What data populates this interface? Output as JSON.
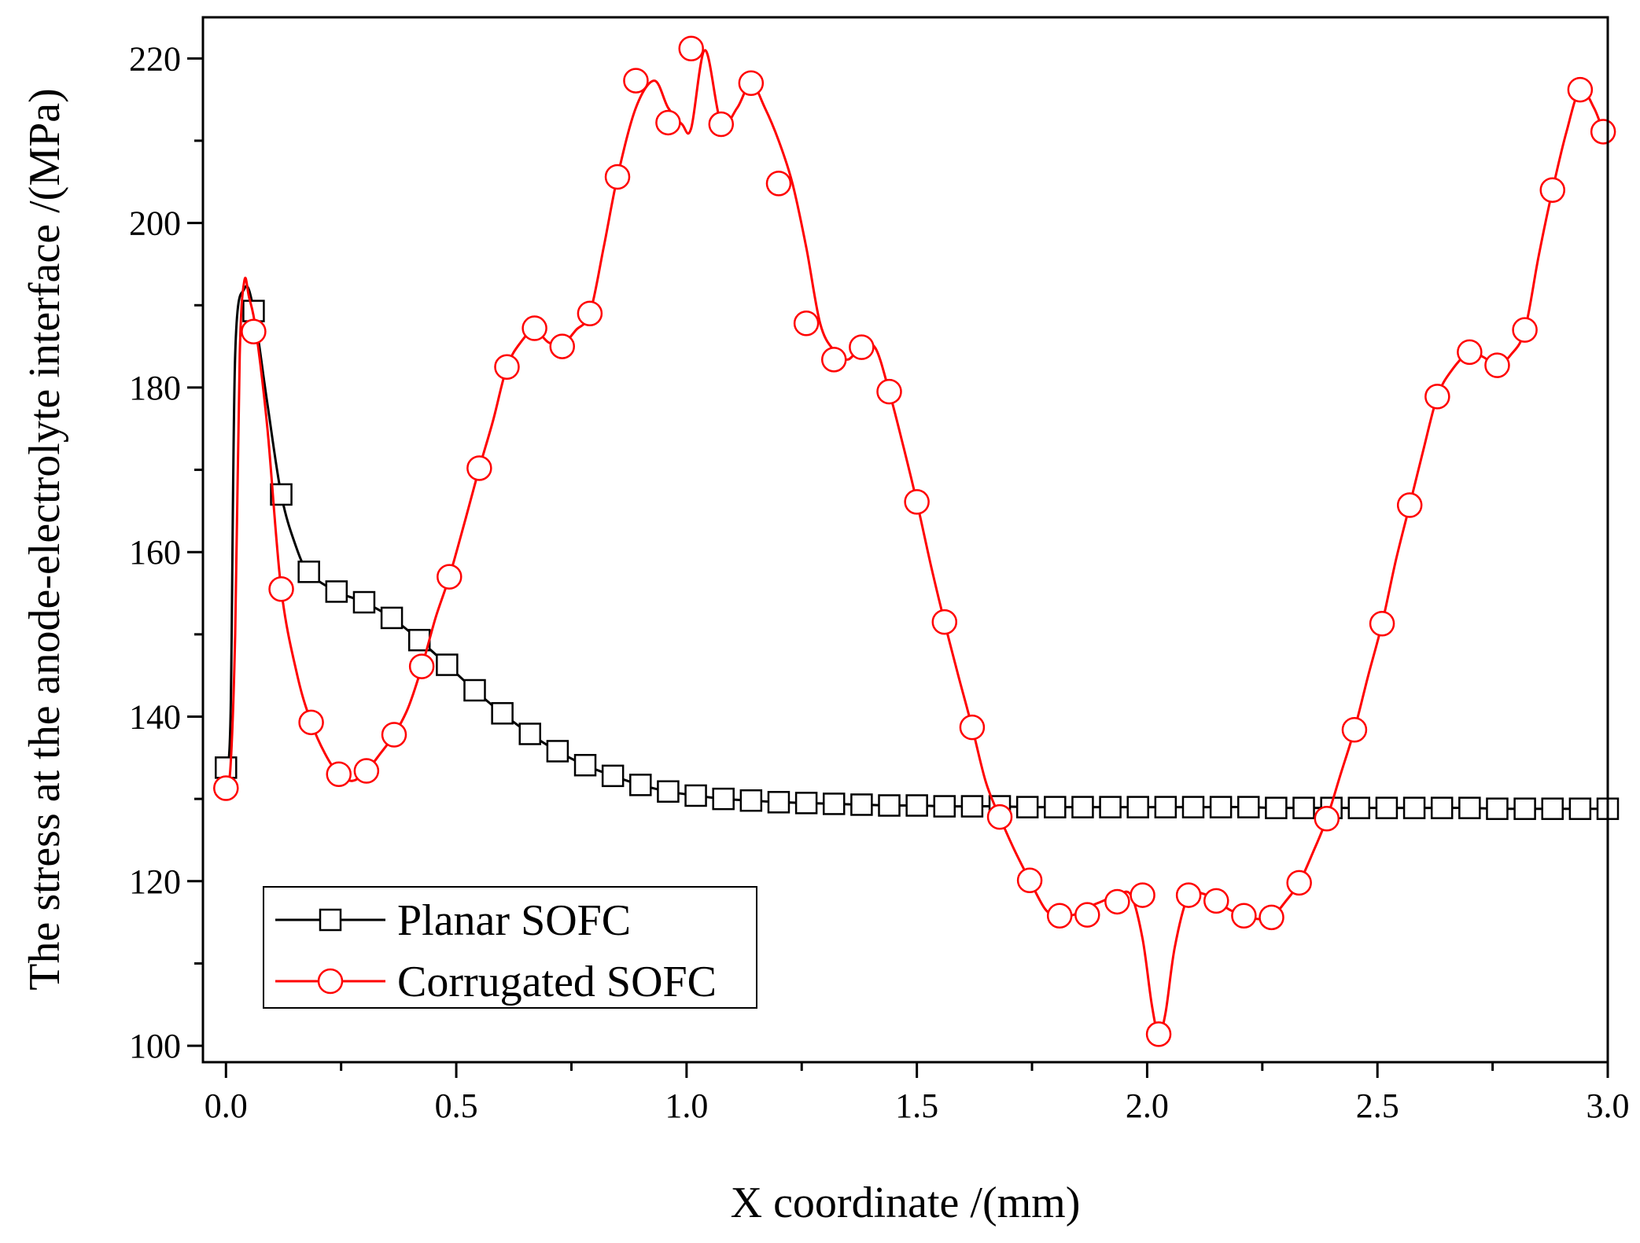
{
  "chart_data": {
    "type": "line",
    "title": "",
    "xlabel": "X coordinate /(mm)",
    "ylabel": "The stress at the anode-electrolyte interface /(MPa)",
    "xlim": [
      -0.05,
      3.0
    ],
    "ylim": [
      98,
      225
    ],
    "xticks": [
      0.0,
      0.5,
      1.0,
      1.5,
      2.0,
      2.5,
      3.0
    ],
    "xtick_labels": [
      "0.0",
      "0.5",
      "1.0",
      "1.5",
      "2.0",
      "2.5",
      "3.0"
    ],
    "yticks": [
      100,
      120,
      140,
      160,
      180,
      200,
      220
    ],
    "ytick_labels": [
      "100",
      "120",
      "140",
      "160",
      "180",
      "200",
      "220"
    ],
    "grid": false,
    "legend_position": "bottom-left",
    "series": [
      {
        "name": "Planar SOFC",
        "color": "#000000",
        "marker": "square",
        "line_x": [
          0.0,
          0.01,
          0.02,
          0.04,
          0.06,
          0.09,
          0.12,
          0.15,
          0.18,
          0.24,
          0.3,
          0.36,
          0.42,
          0.48,
          0.54,
          0.6,
          0.66,
          0.72,
          0.78,
          0.84,
          0.9,
          0.96,
          1.02,
          1.08,
          1.14,
          1.2,
          1.26,
          1.32,
          1.38,
          1.44,
          1.5,
          1.56,
          1.62,
          1.68,
          1.74,
          1.8,
          1.86,
          1.92,
          1.98,
          2.04,
          2.1,
          2.16,
          2.22,
          2.28,
          2.34,
          2.4,
          2.46,
          2.52,
          2.58,
          2.64,
          2.7,
          2.76,
          2.82,
          2.88,
          2.94,
          3.0
        ],
        "line_y": [
          133.8,
          140,
          184,
          192,
          189.5,
          178,
          167,
          161,
          157.5,
          155.2,
          153.9,
          152.0,
          149.3,
          146.3,
          143.2,
          140.4,
          137.9,
          135.8,
          134.1,
          132.8,
          131.7,
          130.9,
          130.4,
          130.0,
          129.8,
          129.6,
          129.5,
          129.4,
          129.3,
          129.2,
          129.2,
          129.1,
          129.1,
          129.1,
          129.0,
          129.0,
          129.0,
          129.0,
          129.0,
          129.0,
          129.0,
          129.0,
          129.0,
          128.9,
          128.9,
          128.9,
          128.9,
          128.9,
          128.9,
          128.9,
          128.9,
          128.8,
          128.8,
          128.8,
          128.8,
          128.8
        ],
        "marker_x": [
          0.0,
          0.06,
          0.12,
          0.18,
          0.24,
          0.3,
          0.36,
          0.42,
          0.48,
          0.54,
          0.6,
          0.66,
          0.72,
          0.78,
          0.84,
          0.9,
          0.96,
          1.02,
          1.08,
          1.14,
          1.2,
          1.26,
          1.32,
          1.38,
          1.44,
          1.5,
          1.56,
          1.62,
          1.68,
          1.74,
          1.8,
          1.86,
          1.92,
          1.98,
          2.04,
          2.1,
          2.16,
          2.22,
          2.28,
          2.34,
          2.4,
          2.46,
          2.52,
          2.58,
          2.64,
          2.7,
          2.76,
          2.82,
          2.88,
          2.94,
          3.0
        ],
        "marker_y": [
          133.8,
          189.3,
          167.0,
          157.6,
          155.2,
          153.9,
          152.0,
          149.3,
          146.3,
          143.2,
          140.4,
          137.9,
          135.8,
          134.1,
          132.8,
          131.7,
          130.9,
          130.4,
          130.0,
          129.8,
          129.6,
          129.5,
          129.4,
          129.3,
          129.2,
          129.2,
          129.1,
          129.1,
          129.1,
          129.0,
          129.0,
          129.0,
          129.0,
          129.0,
          129.0,
          129.0,
          129.0,
          129.0,
          128.9,
          128.9,
          128.9,
          128.9,
          128.9,
          128.9,
          128.9,
          128.9,
          128.8,
          128.8,
          128.8,
          128.8,
          128.8
        ]
      },
      {
        "name": "Corrugated SOFC",
        "color": "#ff0000",
        "marker": "circle",
        "line_x": [
          0.0,
          0.01,
          0.02,
          0.03,
          0.04,
          0.05,
          0.065,
          0.09,
          0.12,
          0.155,
          0.185,
          0.215,
          0.245,
          0.275,
          0.305,
          0.335,
          0.365,
          0.395,
          0.425,
          0.455,
          0.485,
          0.52,
          0.55,
          0.58,
          0.61,
          0.64,
          0.67,
          0.7,
          0.73,
          0.76,
          0.79,
          0.82,
          0.85,
          0.89,
          0.93,
          0.96,
          0.99,
          1.01,
          1.04,
          1.075,
          1.11,
          1.14,
          1.17,
          1.2,
          1.23,
          1.26,
          1.29,
          1.32,
          1.35,
          1.38,
          1.41,
          1.44,
          1.47,
          1.5,
          1.53,
          1.56,
          1.59,
          1.62,
          1.65,
          1.68,
          1.71,
          1.745,
          1.78,
          1.81,
          1.84,
          1.87,
          1.9,
          1.935,
          1.965,
          1.99,
          2.01,
          2.025,
          2.04,
          2.06,
          2.09,
          2.12,
          2.15,
          2.18,
          2.21,
          2.24,
          2.27,
          2.3,
          2.33,
          2.36,
          2.39,
          2.42,
          2.45,
          2.48,
          2.51,
          2.54,
          2.57,
          2.6,
          2.63,
          2.66,
          2.7,
          2.73,
          2.76,
          2.79,
          2.82,
          2.85,
          2.88,
          2.91,
          2.94,
          2.97,
          2.99
        ],
        "line_y": [
          131.3,
          134,
          150,
          184,
          193,
          191,
          187,
          175,
          155.5,
          145,
          139.3,
          135.5,
          133.0,
          132.2,
          133.4,
          135.5,
          137.8,
          141,
          146,
          152,
          157,
          164,
          170.2,
          176,
          182.5,
          185.5,
          187,
          185.5,
          185.2,
          187,
          189,
          197,
          205.6,
          214,
          217.3,
          214,
          212,
          211.5,
          221,
          212.2,
          214,
          217,
          214,
          210,
          204.8,
          197,
          187.8,
          184.5,
          183.4,
          185,
          184.8,
          179.5,
          173,
          166.1,
          158.5,
          151.5,
          145,
          138.7,
          132,
          127.8,
          124,
          120.1,
          116.5,
          115.8,
          115.9,
          116.8,
          117.5,
          118.3,
          118.3,
          113,
          105,
          101.4,
          104,
          112,
          118.3,
          118.5,
          117.6,
          116.5,
          115.8,
          115.4,
          115.6,
          117.5,
          119.8,
          123.5,
          127.6,
          133,
          138.4,
          145,
          151.3,
          159,
          165.7,
          172.5,
          178.9,
          182,
          184.3,
          183.7,
          182.7,
          184,
          187,
          196,
          204,
          211,
          216.2,
          214,
          211.1
        ],
        "marker_x": [
          0.0,
          0.06,
          0.12,
          0.185,
          0.245,
          0.305,
          0.365,
          0.425,
          0.485,
          0.55,
          0.61,
          0.67,
          0.73,
          0.79,
          0.85,
          0.89,
          0.96,
          1.01,
          1.075,
          1.14,
          1.2,
          1.26,
          1.32,
          1.38,
          1.44,
          1.5,
          1.56,
          1.62,
          1.68,
          1.745,
          1.81,
          1.87,
          1.935,
          1.99,
          2.025,
          2.09,
          2.15,
          2.21,
          2.27,
          2.33,
          2.39,
          2.45,
          2.51,
          2.57,
          2.63,
          2.7,
          2.76,
          2.82,
          2.88,
          2.94,
          2.99
        ],
        "marker_y": [
          131.3,
          186.8,
          155.5,
          139.3,
          133.0,
          133.4,
          137.8,
          146.1,
          157.0,
          170.2,
          182.5,
          187.2,
          185.0,
          189.0,
          205.6,
          217.3,
          212.2,
          221.2,
          212.0,
          217.0,
          204.8,
          187.8,
          183.4,
          184.9,
          179.5,
          166.1,
          151.5,
          138.7,
          127.8,
          120.1,
          115.8,
          115.9,
          117.5,
          118.3,
          101.4,
          118.3,
          117.6,
          115.8,
          115.6,
          119.8,
          127.6,
          138.4,
          151.3,
          165.7,
          178.9,
          184.3,
          182.7,
          187.0,
          204.0,
          216.2,
          211.1
        ]
      }
    ]
  }
}
